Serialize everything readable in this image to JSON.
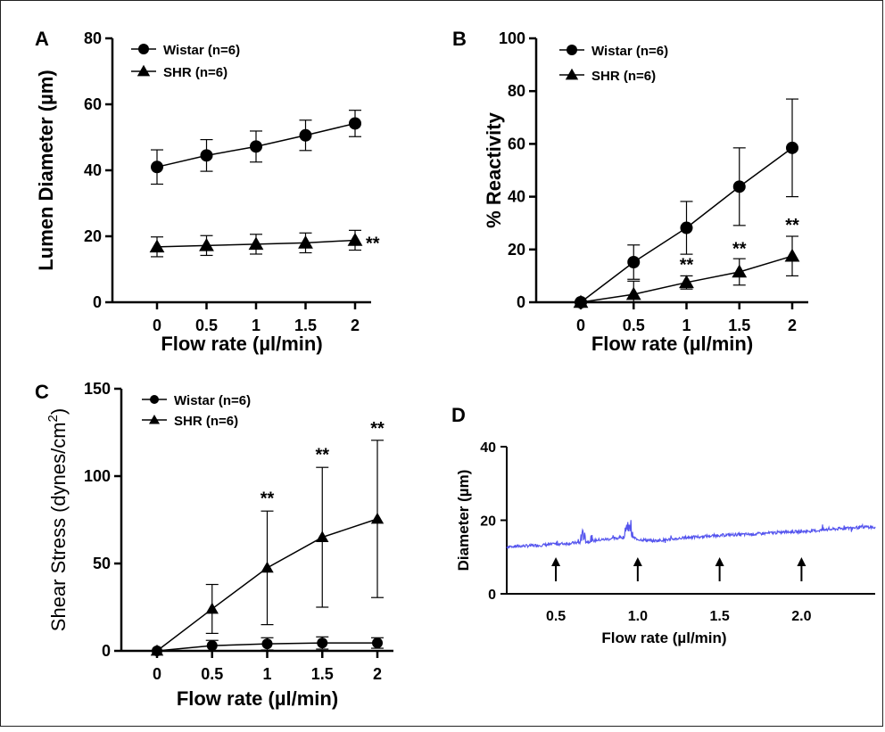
{
  "chart_data": [
    {
      "panel": "A",
      "type": "line",
      "x": [
        0,
        0.5,
        1,
        1.5,
        2
      ],
      "xticks": [
        "0",
        "0.5",
        "1",
        "1.5",
        "2"
      ],
      "xlabel": "Flow rate (µl/min)",
      "ylabel": "Lumen Diameter (µm)",
      "ylim": [
        0,
        80
      ],
      "yticks": [
        "0",
        "20",
        "40",
        "60",
        "80"
      ],
      "legend_position": "top-left",
      "series": [
        {
          "name": "Wistar (n=6)",
          "marker": "circle",
          "values": [
            41,
            44.5,
            47.2,
            50.6,
            54.2
          ],
          "err": [
            5.2,
            4.8,
            4.7,
            4.6,
            4
          ]
        },
        {
          "name": "SHR (n=6)",
          "marker": "triangle",
          "values": [
            16.8,
            17.2,
            17.6,
            18,
            18.8
          ],
          "err": [
            3,
            3,
            3,
            3,
            3
          ]
        }
      ],
      "annotations": [
        {
          "text": "**",
          "x": 2,
          "y": 18.8,
          "side": "right"
        }
      ]
    },
    {
      "panel": "B",
      "type": "line",
      "x": [
        0,
        0.5,
        1,
        1.5,
        2
      ],
      "xticks": [
        "0",
        "0.5",
        "1",
        "1.5",
        "2"
      ],
      "xlabel": "Flow rate (µl/min)",
      "ylabel": "% Reactivity",
      "ylim": [
        0,
        100
      ],
      "yticks": [
        "0",
        "20",
        "40",
        "60",
        "80",
        "100"
      ],
      "legend_position": "top-left",
      "series": [
        {
          "name": "Wistar (n=6)",
          "marker": "circle",
          "values": [
            0,
            15.2,
            28.2,
            43.8,
            58.5
          ],
          "err": [
            0,
            6.5,
            10,
            14.7,
            18.5
          ]
        },
        {
          "name": "SHR (n=6)",
          "marker": "triangle",
          "values": [
            0,
            3,
            7.5,
            11.5,
            17.5
          ],
          "err": [
            0,
            5,
            2.5,
            5,
            7.5
          ]
        }
      ],
      "annotations": [
        {
          "text": "**",
          "x": 1,
          "y": 12
        },
        {
          "text": "**",
          "x": 1.5,
          "y": 18
        },
        {
          "text": "**",
          "x": 2,
          "y": 27
        }
      ]
    },
    {
      "panel": "C",
      "type": "line",
      "x": [
        0,
        0.5,
        1,
        1.5,
        2
      ],
      "xticks": [
        "0",
        "0.5",
        "1",
        "1.5",
        "2"
      ],
      "xlabel": "Flow rate (µl/min)",
      "ylabel_main": "Shear Stress (dynes/cm",
      "ylabel_sup": "2",
      "ylabel_end": ")",
      "ylim": [
        0,
        150
      ],
      "yticks": [
        "0",
        "50",
        "100",
        "150"
      ],
      "legend_position": "top-left",
      "series": [
        {
          "name": "Wistar (n=6)",
          "marker": "circle",
          "values": [
            0,
            3,
            4,
            4.5,
            4.5
          ],
          "err": [
            0,
            3,
            3.5,
            3.5,
            3
          ]
        },
        {
          "name": "SHR (n=6)",
          "marker": "triangle",
          "values": [
            0,
            24,
            47.5,
            65,
            75.5
          ],
          "err": [
            0,
            14,
            32.5,
            40,
            45
          ]
        }
      ],
      "annotations": [
        {
          "text": "**",
          "x": 1,
          "y": 84
        },
        {
          "text": "**",
          "x": 1.5,
          "y": 109
        },
        {
          "text": "**",
          "x": 2,
          "y": 124
        }
      ]
    },
    {
      "panel": "D",
      "type": "line",
      "xlabel": "Flow rate (µl/min)",
      "ylabel": "Diameter (µm)",
      "xlim": [
        0.2,
        2.45
      ],
      "xticks_values": [
        0.5,
        1.0,
        1.5,
        2.0
      ],
      "xticks": [
        "0.5",
        "1.0",
        "1.5",
        "2.0"
      ],
      "ylim": [
        0,
        40
      ],
      "yticks": [
        "0",
        "20",
        "40"
      ],
      "trace_color": "#5555ee",
      "trace_x": [
        0.2,
        0.3,
        0.4,
        0.5,
        0.6,
        0.66,
        0.7,
        0.75,
        0.8,
        0.85,
        0.9,
        0.95,
        1.0,
        1.05,
        1.1,
        1.2,
        1.3,
        1.4,
        1.5,
        1.6,
        1.7,
        1.8,
        1.9,
        2.0,
        2.1,
        2.2,
        2.3,
        2.4,
        2.45
      ],
      "trace_y": [
        12.8,
        13.0,
        13.2,
        13.5,
        13.8,
        14.0,
        14.2,
        14.6,
        14.8,
        15.0,
        15.3,
        15.8,
        14.8,
        14.6,
        14.4,
        14.8,
        15.3,
        15.6,
        15.9,
        16.1,
        16.2,
        16.5,
        16.8,
        16.9,
        17.2,
        17.6,
        17.9,
        18.2,
        18.0
      ],
      "arrows_at": [
        0.5,
        1.0,
        1.5,
        2.0
      ]
    }
  ],
  "panels": {
    "A": {
      "label": "A"
    },
    "B": {
      "label": "B"
    },
    "C": {
      "label": "C"
    },
    "D": {
      "label": "D"
    }
  },
  "colors": {
    "ink": "#000000",
    "trace": "#5555ee"
  }
}
